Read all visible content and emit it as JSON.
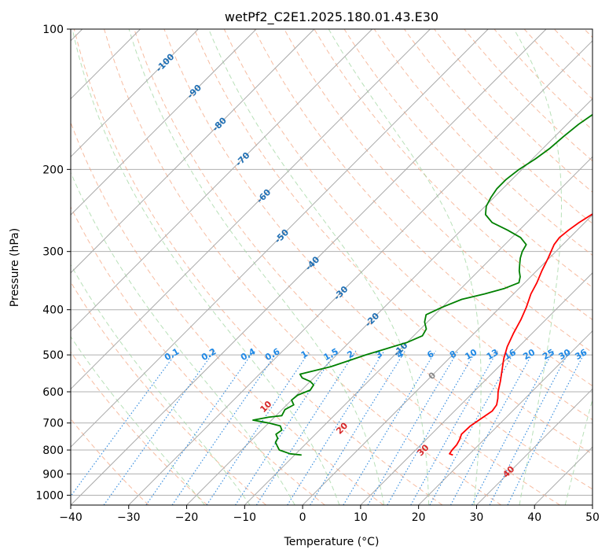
{
  "chart_data": {
    "type": "line",
    "title": "wetPf2_C2E1.2025.180.01.43.E30",
    "xlabel": "Temperature (°C)",
    "ylabel": "Pressure (hPa)",
    "xlim": [
      -40,
      50
    ],
    "ylim": [
      1050,
      100
    ],
    "y_scale": "log",
    "x_ticks": [
      "−40",
      "−30",
      "−20",
      "−10",
      "0",
      "10",
      "20",
      "30",
      "40",
      "50"
    ],
    "y_ticks": [
      {
        "p": 100,
        "label": "100"
      },
      {
        "p": 200,
        "label": "200"
      },
      {
        "p": 300,
        "label": "300"
      },
      {
        "p": 400,
        "label": "400"
      },
      {
        "p": 500,
        "label": "500"
      },
      {
        "p": 600,
        "label": "600"
      },
      {
        "p": 700,
        "label": "700"
      },
      {
        "p": 800,
        "label": "800"
      },
      {
        "p": 900,
        "label": "900"
      },
      {
        "p": 1000,
        "label": "1000"
      }
    ],
    "grid": true,
    "colors": {
      "temperature": "#ff0000",
      "dewpoint": "#008000",
      "isotherm": "#aaaaaa",
      "dry_adiabat": "#f4a582",
      "moist_adiabat": "#a6d8a6",
      "mixing_ratio": "#3a8fdf",
      "isotherm_label": "#1f6fb4",
      "dry_adiabat_label": "#d62728",
      "mixing_ratio_label": "#1e88e5",
      "zero_label": "#888888"
    },
    "isotherm_labels": [
      {
        "t": -100,
        "p": 118,
        "text": "-100"
      },
      {
        "t": -90,
        "p": 136,
        "text": "-90"
      },
      {
        "t": -80,
        "p": 160,
        "text": "-80"
      },
      {
        "t": -70,
        "p": 190,
        "text": "-70"
      },
      {
        "t": -60,
        "p": 228,
        "text": "-60"
      },
      {
        "t": -50,
        "p": 278,
        "text": "-50"
      },
      {
        "t": -40,
        "p": 318,
        "text": "-40"
      },
      {
        "t": -30,
        "p": 368,
        "text": "-30"
      },
      {
        "t": -20,
        "p": 420,
        "text": "-20"
      },
      {
        "t": -10,
        "p": 486,
        "text": "-10"
      },
      {
        "t": 0,
        "p": 554,
        "text": "0"
      }
    ],
    "dry_adiabat_labels": [
      {
        "theta": 10,
        "p": 645,
        "text": "10"
      },
      {
        "theta": 20,
        "p": 718,
        "text": "20"
      },
      {
        "theta": 30,
        "p": 800,
        "text": "30"
      },
      {
        "theta": 40,
        "p": 890,
        "text": "40"
      }
    ],
    "mixing_ratio_labels": [
      "0.1",
      "0.2",
      "0.4",
      "0.6",
      "1",
      "1.5",
      "2",
      "3",
      "4",
      "6",
      "8",
      "10",
      "13",
      "16",
      "20",
      "25",
      "30",
      "36"
    ],
    "series": [
      {
        "name": "",
        "role": "temperature",
        "points": [
          [
            17.3,
            820
          ],
          [
            16.5,
            815
          ],
          [
            16.3,
            800
          ],
          [
            16.2,
            780
          ],
          [
            15.8,
            760
          ],
          [
            15.2,
            740
          ],
          [
            15.3,
            710
          ],
          [
            16.0,
            680
          ],
          [
            16.5,
            660
          ],
          [
            16.2,
            640
          ],
          [
            15.3,
            620
          ],
          [
            14.2,
            600
          ],
          [
            12.8,
            570
          ],
          [
            11.2,
            540
          ],
          [
            9.5,
            510
          ],
          [
            8.0,
            480
          ],
          [
            6.8,
            450
          ],
          [
            5.7,
            420
          ],
          [
            4.5,
            395
          ],
          [
            3.0,
            370
          ],
          [
            2.1,
            350
          ],
          [
            0.9,
            330
          ],
          [
            -0.2,
            310
          ],
          [
            -1.5,
            290
          ],
          [
            -1.8,
            280
          ],
          [
            -1.5,
            270
          ],
          [
            -1.0,
            260
          ],
          [
            0.2,
            245
          ],
          [
            1.4,
            230
          ],
          [
            2.4,
            215
          ],
          [
            3.4,
            200
          ],
          [
            4.2,
            190
          ],
          [
            4.6,
            180
          ],
          [
            4.4,
            170
          ],
          [
            4.5,
            160
          ],
          [
            4.8,
            150
          ],
          [
            5.4,
            140
          ],
          [
            5.7,
            130
          ],
          [
            5.8,
            120
          ],
          [
            6.0,
            110
          ],
          [
            6.6,
            100
          ]
        ]
      },
      {
        "name": "",
        "role": "dewpoint",
        "points": [
          [
            -8.8,
            820
          ],
          [
            -11.0,
            815
          ],
          [
            -13.5,
            800
          ],
          [
            -14.5,
            785
          ],
          [
            -15.5,
            770
          ],
          [
            -15.8,
            755
          ],
          [
            -16.8,
            740
          ],
          [
            -16.5,
            725
          ],
          [
            -17.5,
            710
          ],
          [
            -20.0,
            700
          ],
          [
            -23.2,
            690
          ],
          [
            -21.0,
            680
          ],
          [
            -19.0,
            675
          ],
          [
            -19.5,
            655
          ],
          [
            -18.8,
            640
          ],
          [
            -20.0,
            625
          ],
          [
            -19.8,
            610
          ],
          [
            -18.5,
            595
          ],
          [
            -18.8,
            580
          ],
          [
            -20.0,
            570
          ],
          [
            -22.0,
            560
          ],
          [
            -23.0,
            550
          ],
          [
            -21.0,
            540
          ],
          [
            -19.0,
            530
          ],
          [
            -17.0,
            515
          ],
          [
            -15.0,
            500
          ],
          [
            -12.5,
            485
          ],
          [
            -10.0,
            470
          ],
          [
            -8.5,
            455
          ],
          [
            -9.0,
            440
          ],
          [
            -10.5,
            425
          ],
          [
            -11.5,
            410
          ],
          [
            -10.0,
            395
          ],
          [
            -8.0,
            380
          ],
          [
            -5.0,
            370
          ],
          [
            -2.5,
            360
          ],
          [
            -1.0,
            350
          ],
          [
            -1.8,
            340
          ],
          [
            -3.0,
            330
          ],
          [
            -4.0,
            320
          ],
          [
            -5.0,
            310
          ],
          [
            -5.8,
            300
          ],
          [
            -6.3,
            290
          ],
          [
            -8.5,
            280
          ],
          [
            -12.0,
            270
          ],
          [
            -16.0,
            260
          ],
          [
            -18.5,
            250
          ],
          [
            -19.8,
            240
          ],
          [
            -20.5,
            230
          ],
          [
            -21.0,
            220
          ],
          [
            -21.0,
            210
          ],
          [
            -20.5,
            200
          ],
          [
            -19.5,
            190
          ],
          [
            -18.8,
            180
          ],
          [
            -18.5,
            170
          ],
          [
            -18.0,
            160
          ],
          [
            -17.0,
            150
          ],
          [
            -15.5,
            140
          ],
          [
            -14.0,
            130
          ],
          [
            -12.5,
            120
          ],
          [
            -11.5,
            110
          ],
          [
            -10.3,
            100
          ]
        ]
      }
    ]
  }
}
